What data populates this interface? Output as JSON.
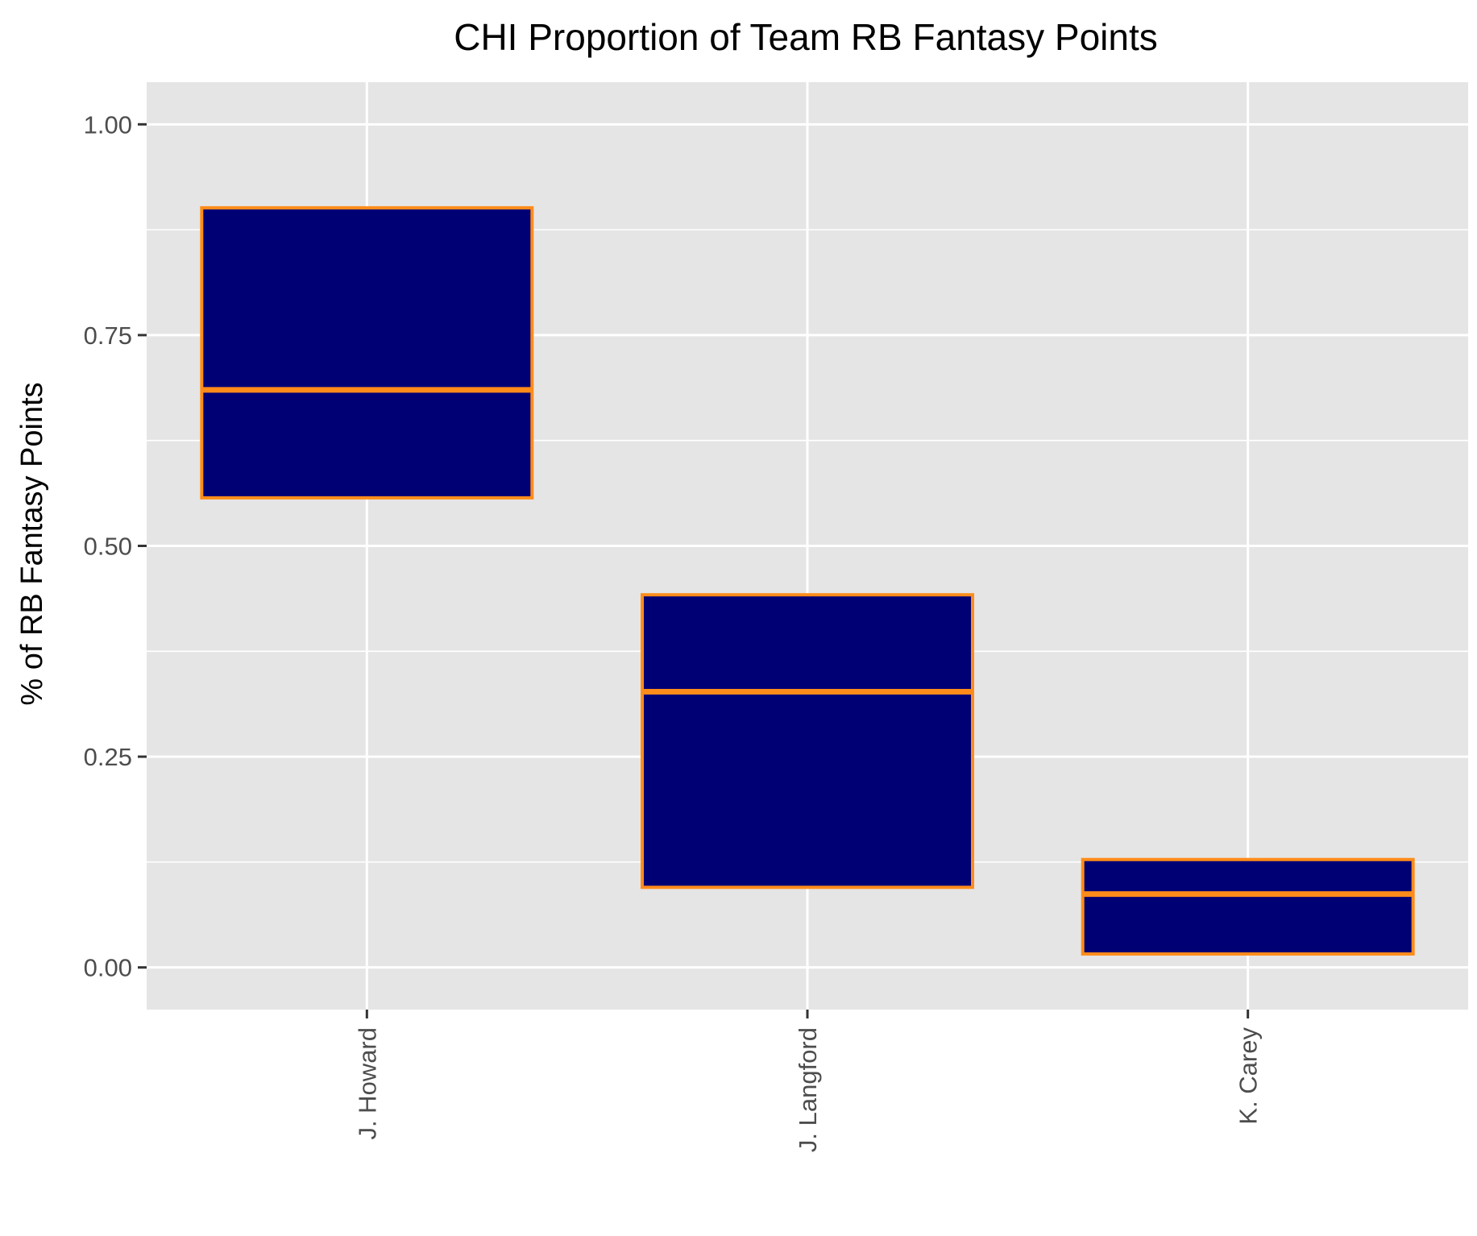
{
  "chart_data": {
    "type": "boxplot",
    "title": "CHI Proportion of Team RB Fantasy Points",
    "xlabel": "",
    "ylabel": "% of RB Fantasy Points",
    "ylim": [
      -0.05,
      1.05
    ],
    "yticks": [
      "0.00",
      "0.25",
      "0.50",
      "0.75",
      "1.00"
    ],
    "ytick_values": [
      0,
      0.25,
      0.5,
      0.75,
      1.0
    ],
    "categories": [
      "J. Howard",
      "J. Langford",
      "K. Carey"
    ],
    "boxes": [
      {
        "category": "J. Howard",
        "q1": 0.557,
        "median": 0.685,
        "q3": 0.901
      },
      {
        "category": "J. Langford",
        "q1": 0.095,
        "median": 0.327,
        "q3": 0.442
      },
      {
        "category": "K. Carey",
        "q1": 0.016,
        "median": 0.087,
        "q3": 0.128
      }
    ],
    "grid": true,
    "legend": "none",
    "colors": {
      "panel_background": "#E5E5E5",
      "grid": "#FFFFFF",
      "box_fill": "#000075",
      "box_outline": "#FF8C1A",
      "text": "#000000",
      "tick_text": "#4D4D4D"
    }
  }
}
